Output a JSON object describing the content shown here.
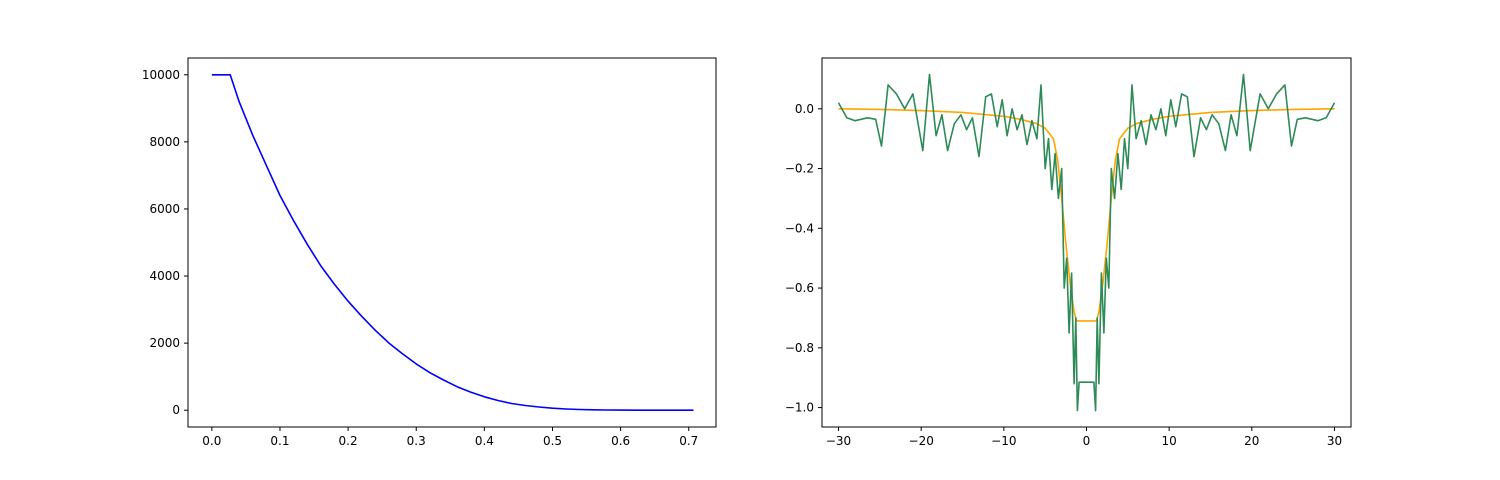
{
  "chart_data": [
    {
      "type": "line",
      "title": "",
      "xlabel": "",
      "ylabel": "",
      "xlim": [
        -0.035,
        0.74
      ],
      "ylim": [
        -500,
        10500
      ],
      "grid": false,
      "xticks": [
        0.0,
        0.1,
        0.2,
        0.3,
        0.4,
        0.5,
        0.6,
        0.7
      ],
      "xtick_labels": [
        "0.0",
        "0.1",
        "0.2",
        "0.3",
        "0.4",
        "0.5",
        "0.6",
        "0.7"
      ],
      "yticks": [
        0,
        2000,
        4000,
        6000,
        8000,
        10000
      ],
      "ytick_labels": [
        "0",
        "2000",
        "4000",
        "6000",
        "8000",
        "10000"
      ],
      "series": [
        {
          "color": "#0000ff",
          "x": [
            0.0,
            0.027,
            0.04,
            0.06,
            0.08,
            0.1,
            0.12,
            0.14,
            0.16,
            0.18,
            0.2,
            0.22,
            0.24,
            0.26,
            0.28,
            0.3,
            0.32,
            0.34,
            0.36,
            0.38,
            0.4,
            0.42,
            0.44,
            0.46,
            0.48,
            0.5,
            0.52,
            0.54,
            0.56,
            0.58,
            0.6,
            0.65,
            0.707
          ],
          "y": [
            10000,
            10000,
            9200,
            8200,
            7300,
            6400,
            5650,
            4950,
            4300,
            3750,
            3250,
            2800,
            2380,
            2000,
            1680,
            1380,
            1120,
            900,
            700,
            540,
            400,
            290,
            200,
            140,
            95,
            60,
            38,
            22,
            12,
            6,
            3,
            1,
            0
          ]
        }
      ]
    },
    {
      "type": "line",
      "title": "",
      "xlabel": "",
      "ylabel": "",
      "xlim": [
        -32,
        32
      ],
      "ylim": [
        -1.065,
        0.17
      ],
      "grid": false,
      "xticks": [
        -30,
        -20,
        -10,
        0,
        10,
        20,
        30
      ],
      "xtick_labels": [
        "−30",
        "−20",
        "−10",
        "0",
        "10",
        "20",
        "30"
      ],
      "yticks": [
        -1.0,
        -0.8,
        -0.6,
        -0.4,
        -0.2,
        0.0
      ],
      "ytick_labels": [
        "−1.0",
        "−0.8",
        "−0.6",
        "−0.4",
        "−0.2",
        "0.0"
      ],
      "series": [
        {
          "color": "#ffa500",
          "x": [
            -30,
            -25,
            -20,
            -15,
            -10,
            -8,
            -6,
            -5,
            -4,
            -3.5,
            -3,
            -2.5,
            -2,
            -1.5,
            -1.2,
            1.2,
            1.5,
            2,
            2.5,
            3,
            3.5,
            4,
            5,
            6,
            8,
            10,
            15,
            20,
            25,
            30
          ],
          "y": [
            0.0,
            -0.002,
            -0.006,
            -0.012,
            -0.025,
            -0.035,
            -0.05,
            -0.065,
            -0.1,
            -0.17,
            -0.3,
            -0.45,
            -0.58,
            -0.68,
            -0.71,
            -0.71,
            -0.68,
            -0.58,
            -0.45,
            -0.3,
            -0.17,
            -0.1,
            -0.065,
            -0.05,
            -0.035,
            -0.025,
            -0.012,
            -0.006,
            -0.002,
            0.0
          ]
        },
        {
          "color": "#2e8b57",
          "x": [
            -30,
            -29,
            -28,
            -26.5,
            -25.5,
            -24.8,
            -24,
            -23,
            -22,
            -21,
            -19.8,
            -19,
            -18.2,
            -17.5,
            -16.8,
            -16,
            -15.2,
            -14.5,
            -13.8,
            -13,
            -12.2,
            -11.5,
            -10.8,
            -10.2,
            -9.6,
            -9,
            -8.4,
            -7.8,
            -7.2,
            -6.6,
            -6,
            -5.5,
            -5,
            -4.6,
            -4.2,
            -3.8,
            -3.4,
            -3,
            -2.7,
            -2.4,
            -2.1,
            -1.8,
            -1.5,
            -1.3,
            -1.1,
            -0.9,
            0.9,
            1.1,
            1.3,
            1.5,
            1.8,
            2.1,
            2.4,
            2.7,
            3,
            3.4,
            3.8,
            4.2,
            4.6,
            5,
            5.5,
            6,
            6.6,
            7.2,
            7.8,
            8.4,
            9,
            9.6,
            10.2,
            10.8,
            11.5,
            12.2,
            13,
            13.8,
            14.5,
            15.2,
            16,
            16.8,
            17.5,
            18.2,
            19,
            19.8,
            21,
            22,
            23,
            24,
            24.8,
            25.5,
            26.5,
            28,
            29,
            30
          ],
          "y": [
            0.02,
            -0.03,
            -0.04,
            -0.03,
            -0.035,
            -0.125,
            0.08,
            0.05,
            0.0,
            0.05,
            -0.14,
            0.115,
            -0.09,
            -0.02,
            -0.14,
            -0.05,
            -0.02,
            -0.07,
            -0.03,
            -0.16,
            0.04,
            0.05,
            -0.06,
            0.03,
            -0.09,
            0.0,
            -0.07,
            -0.02,
            -0.12,
            -0.04,
            -0.1,
            0.08,
            -0.2,
            -0.1,
            -0.27,
            -0.15,
            -0.3,
            -0.2,
            -0.6,
            -0.5,
            -0.75,
            -0.55,
            -0.92,
            -0.7,
            -1.01,
            -0.915,
            -0.915,
            -1.01,
            -0.7,
            -0.92,
            -0.55,
            -0.75,
            -0.5,
            -0.6,
            -0.2,
            -0.3,
            -0.15,
            -0.27,
            -0.1,
            -0.2,
            0.08,
            -0.1,
            -0.04,
            -0.12,
            -0.02,
            -0.07,
            0.0,
            -0.09,
            0.03,
            -0.06,
            0.05,
            0.04,
            -0.16,
            -0.03,
            -0.07,
            -0.02,
            -0.05,
            -0.14,
            -0.02,
            -0.09,
            0.115,
            -0.14,
            0.05,
            0.0,
            0.05,
            0.08,
            -0.125,
            -0.035,
            -0.03,
            -0.04,
            -0.03,
            0.02
          ]
        }
      ]
    }
  ]
}
